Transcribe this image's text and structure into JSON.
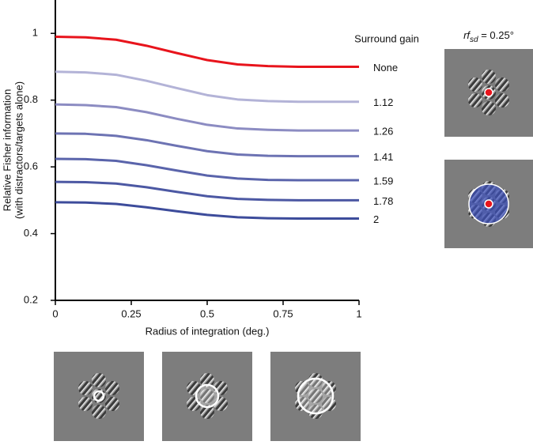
{
  "chart_data": {
    "type": "line",
    "y_label": [
      "Relative Fisher information",
      "(with distractors/targets alone)"
    ],
    "x_label": "Radius of integration (deg.)",
    "legend_title": "Surround gain",
    "panel_label": {
      "base": "rf",
      "sub": "sd",
      "rest": " = 0.25°"
    },
    "x": [
      0,
      0.1,
      0.2,
      0.3,
      0.4,
      0.5,
      0.6,
      0.7,
      0.8,
      0.9,
      1
    ],
    "xlim": [
      0,
      1
    ],
    "xticks": [
      0,
      0.25,
      0.5,
      0.75,
      1
    ],
    "ylim": [
      0.2,
      1.1
    ],
    "yticks": [
      0.2,
      0.4,
      0.6,
      0.8,
      1
    ],
    "series": [
      {
        "name": "None",
        "color": "#e8141c",
        "values": [
          0.99,
          0.988,
          0.981,
          0.963,
          0.941,
          0.92,
          0.907,
          0.902,
          0.9,
          0.9,
          0.9
        ]
      },
      {
        "name": "1.12",
        "color": "#b3b3d7",
        "values": [
          0.885,
          0.883,
          0.876,
          0.858,
          0.836,
          0.815,
          0.802,
          0.797,
          0.795,
          0.795,
          0.795
        ]
      },
      {
        "name": "1.26",
        "color": "#8c8cc2",
        "values": [
          0.787,
          0.785,
          0.779,
          0.764,
          0.744,
          0.726,
          0.715,
          0.711,
          0.709,
          0.709,
          0.709
        ]
      },
      {
        "name": "1.41",
        "color": "#6d73b3",
        "values": [
          0.7,
          0.699,
          0.693,
          0.68,
          0.663,
          0.647,
          0.637,
          0.633,
          0.632,
          0.632,
          0.632
        ]
      },
      {
        "name": "1.59",
        "color": "#5a64ab",
        "values": [
          0.624,
          0.623,
          0.618,
          0.605,
          0.589,
          0.574,
          0.565,
          0.561,
          0.56,
          0.56,
          0.56
        ]
      },
      {
        "name": "1.78",
        "color": "#4c58a3",
        "values": [
          0.555,
          0.554,
          0.55,
          0.539,
          0.525,
          0.512,
          0.504,
          0.501,
          0.5,
          0.5,
          0.5
        ]
      },
      {
        "name": "2",
        "color": "#3d4c9b",
        "values": [
          0.494,
          0.493,
          0.489,
          0.479,
          0.467,
          0.456,
          0.449,
          0.446,
          0.445,
          0.445,
          0.445
        ]
      }
    ]
  }
}
